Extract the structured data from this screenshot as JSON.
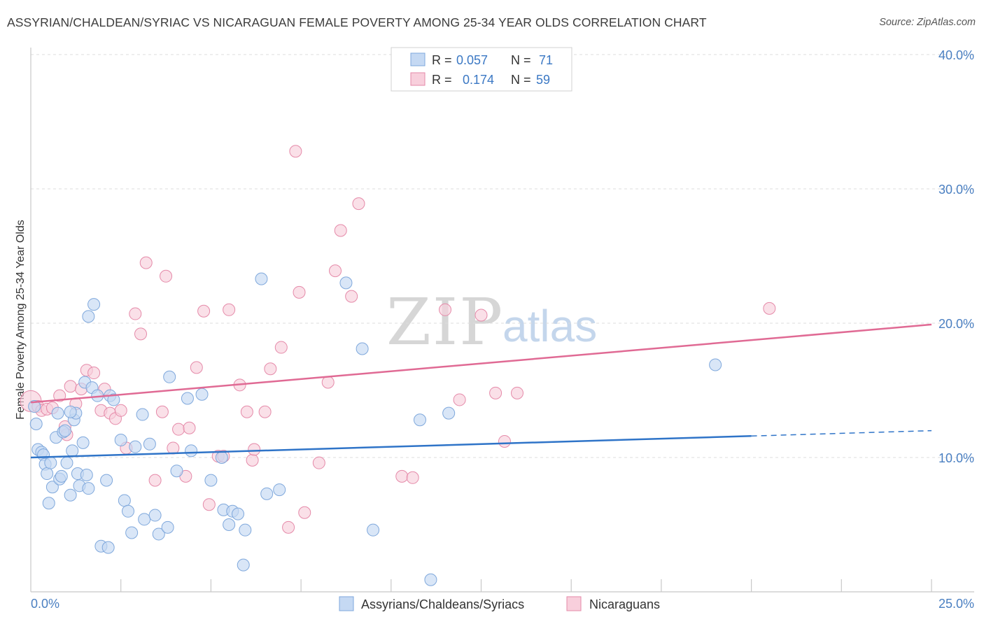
{
  "header": {
    "title": "ASSYRIAN/CHALDEAN/SYRIAC VS NICARAGUAN FEMALE POVERTY AMONG 25-34 YEAR OLDS CORRELATION CHART",
    "source": "Source: ZipAtlas.com"
  },
  "watermark": {
    "part1": "ZIP",
    "part2": "atlas"
  },
  "colors": {
    "blue_fill": "#c5d9f3",
    "blue_stroke": "#7fa8dc",
    "blue_line": "#2f74c8",
    "pink_fill": "#f8cfdc",
    "pink_stroke": "#e58aa9",
    "pink_line": "#e06a94",
    "value_text": "#3b78c4",
    "grid": "#dcdcdc"
  },
  "legend": {
    "rows": [
      {
        "r_label": "R =",
        "r_value": "0.057",
        "n_label": "N =",
        "n_value": "71"
      },
      {
        "r_label": "R =",
        "r_value": "0.174",
        "n_label": "N =",
        "n_value": "59"
      }
    ]
  },
  "bottom_legend": {
    "items": [
      "Assyrians/Chaldeans/Syriacs",
      "Nicaraguans"
    ]
  },
  "chart_data": {
    "type": "scatter",
    "title": "ASSYRIAN/CHALDEAN/SYRIAC VS NICARAGUAN FEMALE POVERTY AMONG 25-34 YEAR OLDS CORRELATION CHART",
    "xlabel": "",
    "ylabel": "Female Poverty Among 25-34 Year Olds",
    "xlim": [
      0,
      25
    ],
    "ylim": [
      0,
      40
    ],
    "x_tick_labels": [
      "0.0%",
      "25.0%"
    ],
    "y_ticks": [
      10,
      20,
      30,
      40
    ],
    "y_tick_labels": [
      "10.0%",
      "20.0%",
      "30.0%",
      "40.0%"
    ],
    "grid": true,
    "series": [
      {
        "name": "Assyrians/Chaldeans/Syriacs",
        "R": 0.057,
        "N": 71,
        "trend": {
          "x0": 0,
          "y0": 10.0,
          "x1": 20,
          "y1": 11.6,
          "dashed_to_x": 25,
          "dashed_to_y": 12.0
        },
        "points": [
          [
            0.1,
            13.8
          ],
          [
            0.15,
            12.5
          ],
          [
            0.2,
            10.6
          ],
          [
            0.3,
            10.4
          ],
          [
            0.35,
            10.2
          ],
          [
            0.4,
            9.5
          ],
          [
            0.45,
            8.8
          ],
          [
            0.5,
            6.6
          ],
          [
            0.55,
            9.6
          ],
          [
            0.6,
            7.8
          ],
          [
            0.7,
            11.5
          ],
          [
            0.75,
            13.3
          ],
          [
            0.8,
            8.4
          ],
          [
            0.85,
            8.6
          ],
          [
            0.9,
            11.9
          ],
          [
            0.95,
            12.0
          ],
          [
            1.0,
            9.6
          ],
          [
            1.1,
            7.2
          ],
          [
            1.15,
            10.5
          ],
          [
            1.2,
            12.8
          ],
          [
            1.25,
            13.3
          ],
          [
            1.3,
            8.8
          ],
          [
            1.35,
            7.9
          ],
          [
            1.45,
            11.1
          ],
          [
            1.5,
            15.6
          ],
          [
            1.55,
            8.7
          ],
          [
            1.6,
            7.7
          ],
          [
            1.7,
            15.2
          ],
          [
            1.75,
            21.4
          ],
          [
            1.85,
            14.6
          ],
          [
            1.95,
            3.4
          ],
          [
            2.1,
            8.3
          ],
          [
            2.15,
            3.3
          ],
          [
            2.2,
            14.6
          ],
          [
            2.3,
            14.3
          ],
          [
            2.5,
            11.3
          ],
          [
            2.6,
            6.8
          ],
          [
            2.7,
            6.0
          ],
          [
            2.8,
            4.4
          ],
          [
            2.9,
            10.8
          ],
          [
            3.1,
            13.2
          ],
          [
            3.15,
            5.4
          ],
          [
            3.3,
            11.0
          ],
          [
            3.45,
            5.7
          ],
          [
            3.55,
            4.3
          ],
          [
            3.8,
            4.8
          ],
          [
            3.85,
            16.0
          ],
          [
            4.05,
            9.0
          ],
          [
            4.35,
            14.4
          ],
          [
            4.45,
            10.5
          ],
          [
            4.75,
            14.7
          ],
          [
            5.0,
            8.3
          ],
          [
            5.3,
            10.0
          ],
          [
            5.35,
            6.1
          ],
          [
            5.5,
            5.0
          ],
          [
            5.6,
            6.0
          ],
          [
            5.75,
            5.8
          ],
          [
            5.9,
            2.0
          ],
          [
            5.95,
            4.6
          ],
          [
            6.4,
            23.3
          ],
          [
            6.55,
            7.3
          ],
          [
            6.9,
            7.6
          ],
          [
            8.75,
            23.0
          ],
          [
            9.2,
            18.1
          ],
          [
            9.5,
            4.6
          ],
          [
            10.8,
            12.8
          ],
          [
            11.1,
            0.9
          ],
          [
            11.6,
            13.3
          ],
          [
            19.0,
            16.9
          ],
          [
            1.6,
            20.5
          ],
          [
            1.1,
            13.4
          ]
        ]
      },
      {
        "name": "Nicaraguans",
        "R": 0.174,
        "N": 59,
        "trend": {
          "x0": 0,
          "y0": 14.1,
          "x1": 25,
          "y1": 19.9
        },
        "points": [
          [
            0.0,
            14.2
          ],
          [
            0.2,
            13.8
          ],
          [
            0.3,
            13.5
          ],
          [
            0.45,
            13.6
          ],
          [
            0.6,
            13.7
          ],
          [
            0.8,
            14.6
          ],
          [
            0.95,
            12.3
          ],
          [
            1.0,
            11.7
          ],
          [
            1.1,
            15.3
          ],
          [
            1.25,
            14.0
          ],
          [
            1.4,
            15.1
          ],
          [
            1.55,
            16.5
          ],
          [
            1.75,
            16.3
          ],
          [
            1.95,
            13.5
          ],
          [
            2.05,
            15.1
          ],
          [
            2.2,
            13.3
          ],
          [
            2.35,
            12.9
          ],
          [
            2.5,
            13.5
          ],
          [
            2.65,
            10.7
          ],
          [
            2.9,
            20.7
          ],
          [
            3.05,
            19.2
          ],
          [
            3.2,
            24.5
          ],
          [
            3.45,
            8.3
          ],
          [
            3.65,
            13.4
          ],
          [
            3.75,
            23.5
          ],
          [
            3.95,
            10.7
          ],
          [
            4.1,
            12.1
          ],
          [
            4.3,
            8.6
          ],
          [
            4.4,
            12.2
          ],
          [
            4.6,
            16.7
          ],
          [
            4.8,
            20.9
          ],
          [
            4.95,
            6.5
          ],
          [
            5.2,
            10.1
          ],
          [
            5.35,
            10.1
          ],
          [
            5.5,
            21.0
          ],
          [
            5.8,
            15.4
          ],
          [
            6.0,
            13.4
          ],
          [
            6.15,
            9.8
          ],
          [
            6.2,
            10.6
          ],
          [
            6.5,
            13.4
          ],
          [
            6.65,
            16.6
          ],
          [
            6.95,
            18.2
          ],
          [
            7.15,
            4.8
          ],
          [
            7.35,
            32.8
          ],
          [
            7.45,
            22.3
          ],
          [
            7.6,
            5.9
          ],
          [
            8.0,
            9.6
          ],
          [
            8.25,
            15.6
          ],
          [
            8.45,
            23.9
          ],
          [
            8.6,
            26.9
          ],
          [
            8.9,
            22.0
          ],
          [
            9.1,
            28.9
          ],
          [
            10.3,
            8.6
          ],
          [
            10.6,
            8.5
          ],
          [
            11.5,
            21.0
          ],
          [
            11.9,
            14.3
          ],
          [
            12.5,
            20.6
          ],
          [
            12.9,
            14.8
          ],
          [
            13.15,
            11.2
          ],
          [
            13.5,
            14.8
          ],
          [
            20.5,
            21.1
          ]
        ]
      }
    ]
  }
}
